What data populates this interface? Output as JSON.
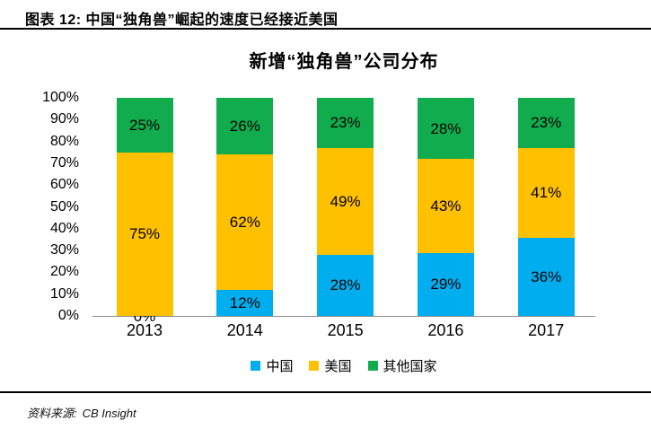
{
  "page": {
    "header": "图表 12: 中国“独角兽”崛起的速度已经接近美国",
    "source_label": "资料来源:",
    "source_value": "CB Insight"
  },
  "chart_data": {
    "type": "bar",
    "stacked": true,
    "title": "新增“独角兽”公司分布",
    "categories": [
      "2013",
      "2014",
      "2015",
      "2016",
      "2017"
    ],
    "series": [
      {
        "name": "中国",
        "color": "#00AEEF",
        "values": [
          0,
          12,
          28,
          29,
          36
        ]
      },
      {
        "name": "美国",
        "color": "#FFC000",
        "values": [
          75,
          62,
          49,
          43,
          41
        ]
      },
      {
        "name": "其他国家",
        "color": "#10AC4E",
        "values": [
          25,
          26,
          23,
          28,
          23
        ]
      }
    ],
    "data_label_suffix": "%",
    "yticks_top_to_bottom": [
      "100%",
      "90%",
      "80%",
      "70%",
      "60%",
      "50%",
      "40%",
      "30%",
      "20%",
      "10%",
      "0%"
    ],
    "ylim": [
      0,
      100
    ],
    "grid": false,
    "legend_position": "bottom",
    "axis_line_color": "#8a8a8a"
  }
}
